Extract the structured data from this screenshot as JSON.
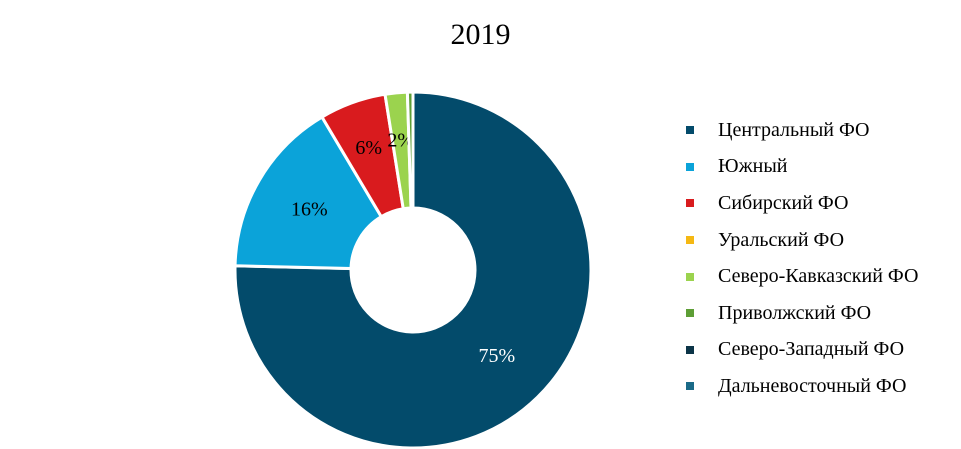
{
  "chart_data": {
    "type": "pie",
    "title": "2019",
    "donut": true,
    "legend_position": "right",
    "series": [
      {
        "name": "Центральный ФО",
        "value": 75,
        "label": "75%",
        "color": "#034b6b",
        "label_color": "#ffffff"
      },
      {
        "name": "Южный",
        "value": 16,
        "label": "16%",
        "color": "#0ba3d9",
        "label_color": "#000000"
      },
      {
        "name": "Сибирский ФО",
        "value": 6,
        "label": "6%",
        "color": "#d91b1e",
        "label_color": "#000000"
      },
      {
        "name": "Уральский ФО",
        "value": 0,
        "label": "",
        "color": "#f5b813",
        "label_color": "#000000"
      },
      {
        "name": "Северо-Кавказский ФО",
        "value": 2,
        "label": "2%",
        "color": "#9bd34e",
        "label_color": "#000000"
      },
      {
        "name": "Приволжский ФО",
        "value": 0.5,
        "label": "",
        "color": "#5d9e35",
        "label_color": "#000000"
      },
      {
        "name": "Северо-Западный ФО",
        "value": 0,
        "label": "",
        "color": "#0c3447",
        "label_color": "#000000"
      },
      {
        "name": "Дальневосточный ФО",
        "value": 0,
        "label": "",
        "color": "#1a6a88",
        "label_color": "#000000"
      }
    ]
  }
}
